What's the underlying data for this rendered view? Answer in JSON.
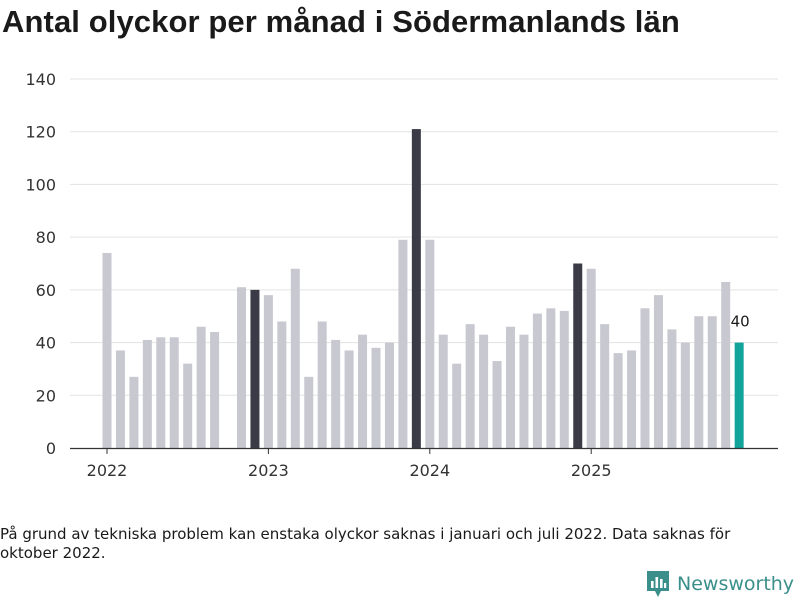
{
  "title": "Antal olyckor per månad i Södermanlands län",
  "footnote": "På grund av tekniska problem kan enstaka olyckor saknas i januari och juli 2022. Data saknas för oktober 2022.",
  "brand": {
    "name": "Newsworthy",
    "icon": "newsworthy-logo-icon",
    "color": "#3a8f8a"
  },
  "colors": {
    "default": "#c8c8d0",
    "december": "#3b3b48",
    "latest": "#12a39a"
  },
  "chart_data": {
    "type": "bar",
    "title": "Antal olyckor per månad i Södermanlands län",
    "xlabel": "",
    "ylabel": "",
    "ylim": [
      0,
      140
    ],
    "yticks": [
      0,
      20,
      40,
      60,
      80,
      100,
      120,
      140
    ],
    "xticks": [
      {
        "label": "2022",
        "month": "2022-01"
      },
      {
        "label": "2023",
        "month": "2023-01"
      },
      {
        "label": "2024",
        "month": "2024-01"
      },
      {
        "label": "2025",
        "month": "2025-01"
      }
    ],
    "months": [
      "2022-01",
      "2022-02",
      "2022-03",
      "2022-04",
      "2022-05",
      "2022-06",
      "2022-07",
      "2022-08",
      "2022-09",
      "2022-10",
      "2022-11",
      "2022-12",
      "2023-01",
      "2023-02",
      "2023-03",
      "2023-04",
      "2023-05",
      "2023-06",
      "2023-07",
      "2023-08",
      "2023-09",
      "2023-10",
      "2023-11",
      "2023-12",
      "2024-01",
      "2024-02",
      "2024-03",
      "2024-04",
      "2024-05",
      "2024-06",
      "2024-07",
      "2024-08",
      "2024-09",
      "2024-10",
      "2024-11",
      "2024-12",
      "2025-01",
      "2025-02",
      "2025-03",
      "2025-04",
      "2025-05",
      "2025-06",
      "2025-07",
      "2025-08",
      "2025-09",
      "2025-10",
      "2025-11",
      "2025-12"
    ],
    "values": [
      74,
      37,
      27,
      41,
      42,
      42,
      32,
      46,
      44,
      null,
      61,
      60,
      58,
      48,
      68,
      27,
      48,
      41,
      37,
      43,
      38,
      40,
      79,
      121,
      79,
      43,
      32,
      47,
      43,
      33,
      46,
      43,
      51,
      53,
      52,
      70,
      68,
      47,
      36,
      37,
      53,
      58,
      45,
      40,
      50,
      50,
      63,
      40
    ],
    "highlight": "december bars dark, latest month teal",
    "annotations": [
      {
        "month": "2025-12",
        "text": "40"
      }
    ]
  }
}
